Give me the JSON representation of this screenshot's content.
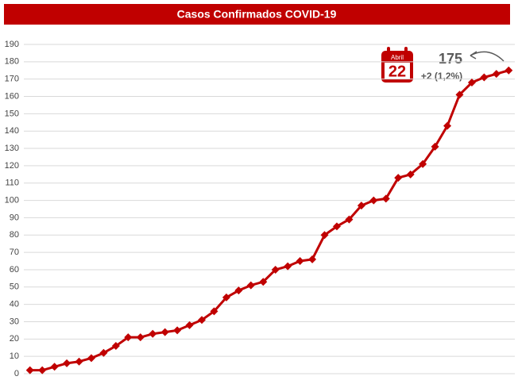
{
  "chart_data": {
    "type": "line",
    "title": "Casos Confirmados COVID-19",
    "categories": [
      null,
      null,
      null,
      null,
      null,
      null,
      null,
      null,
      null,
      null,
      null,
      null,
      null,
      null,
      null,
      null,
      null,
      null,
      null,
      null,
      null,
      null,
      null,
      null,
      null,
      null,
      null,
      null,
      null,
      null,
      null,
      null,
      null,
      null,
      null,
      null,
      null,
      null,
      null,
      null
    ],
    "values": [
      2,
      2,
      4,
      6,
      7,
      9,
      12,
      16,
      21,
      21,
      23,
      24,
      25,
      28,
      31,
      36,
      44,
      48,
      51,
      53,
      60,
      62,
      65,
      66,
      80,
      85,
      89,
      97,
      100,
      101,
      113,
      115,
      121,
      131,
      143,
      161,
      168,
      171,
      173,
      175
    ],
    "color": "#c00000",
    "ylim": [
      0,
      190
    ],
    "yticks": [
      0,
      10,
      20,
      30,
      40,
      50,
      60,
      70,
      80,
      90,
      100,
      110,
      120,
      130,
      140,
      150,
      160,
      170,
      180,
      190
    ],
    "grid": true,
    "annotation": {
      "month": "Abril",
      "day": "22",
      "total": "175",
      "change": "+2 (1,2%)"
    }
  }
}
